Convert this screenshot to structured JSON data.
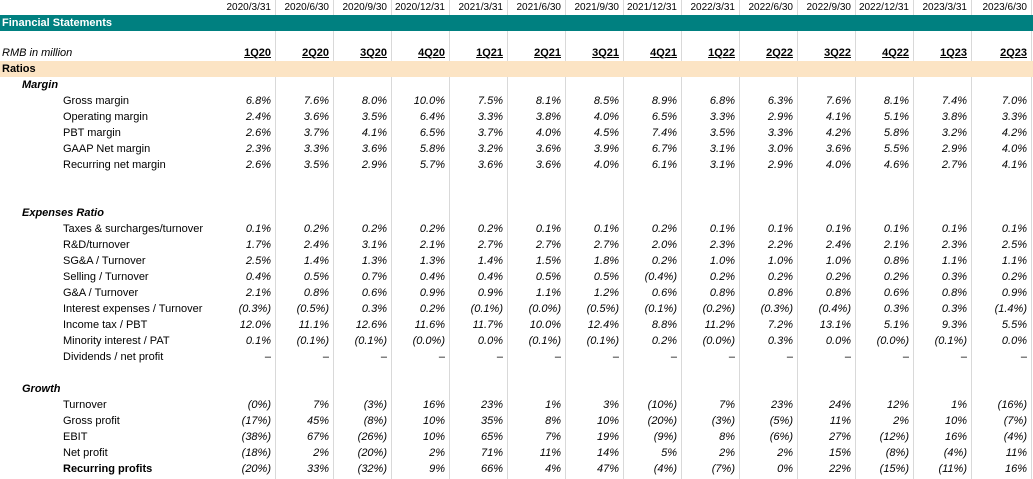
{
  "dates": [
    "2020/3/31",
    "2020/6/30",
    "2020/9/30",
    "2020/12/31",
    "2021/3/31",
    "2021/6/30",
    "2021/9/30",
    "2021/12/31",
    "2022/3/31",
    "2022/6/30",
    "2022/9/30",
    "2022/12/31",
    "2023/3/31",
    "2023/6/30"
  ],
  "quarters": [
    "1Q20",
    "2Q20",
    "3Q20",
    "4Q20",
    "1Q21",
    "2Q21",
    "3Q21",
    "4Q21",
    "1Q22",
    "2Q22",
    "3Q22",
    "4Q22",
    "1Q23",
    "2Q23"
  ],
  "title": "Financial Statements",
  "unit_label": "RMB in million",
  "ratios_label": "Ratios",
  "sections": [
    {
      "name": "Margin",
      "rows": [
        {
          "label": "Gross margin",
          "values": [
            "6.8%",
            "7.6%",
            "8.0%",
            "10.0%",
            "7.5%",
            "8.1%",
            "8.5%",
            "8.9%",
            "6.8%",
            "6.3%",
            "7.6%",
            "8.1%",
            "7.4%",
            "7.0%"
          ]
        },
        {
          "label": "Operating margin",
          "values": [
            "2.4%",
            "3.6%",
            "3.5%",
            "6.4%",
            "3.3%",
            "3.8%",
            "4.0%",
            "6.5%",
            "3.3%",
            "2.9%",
            "4.1%",
            "5.1%",
            "3.8%",
            "3.3%"
          ]
        },
        {
          "label": "PBT margin",
          "values": [
            "2.6%",
            "3.7%",
            "4.1%",
            "6.5%",
            "3.7%",
            "4.0%",
            "4.5%",
            "7.4%",
            "3.5%",
            "3.3%",
            "4.2%",
            "5.8%",
            "3.2%",
            "4.2%"
          ]
        },
        {
          "label": "GAAP Net margin",
          "values": [
            "2.3%",
            "3.3%",
            "3.6%",
            "5.8%",
            "3.2%",
            "3.6%",
            "3.9%",
            "6.7%",
            "3.1%",
            "3.0%",
            "3.6%",
            "5.5%",
            "2.9%",
            "4.0%"
          ]
        },
        {
          "label": "Recurring net margin",
          "values": [
            "2.6%",
            "3.5%",
            "2.9%",
            "5.7%",
            "3.6%",
            "3.6%",
            "4.0%",
            "6.1%",
            "3.1%",
            "2.9%",
            "4.0%",
            "4.6%",
            "2.7%",
            "4.1%"
          ]
        }
      ]
    },
    {
      "name": "Expenses Ratio",
      "rows": [
        {
          "label": "Taxes & surcharges/turnover",
          "values": [
            "0.1%",
            "0.2%",
            "0.2%",
            "0.2%",
            "0.2%",
            "0.1%",
            "0.1%",
            "0.2%",
            "0.1%",
            "0.1%",
            "0.1%",
            "0.1%",
            "0.1%",
            "0.1%"
          ]
        },
        {
          "label": "R&D/turnover",
          "values": [
            "1.7%",
            "2.4%",
            "3.1%",
            "2.1%",
            "2.7%",
            "2.7%",
            "2.7%",
            "2.0%",
            "2.3%",
            "2.2%",
            "2.4%",
            "2.1%",
            "2.3%",
            "2.5%"
          ]
        },
        {
          "label": "SG&A / Turnover",
          "values": [
            "2.5%",
            "1.4%",
            "1.3%",
            "1.3%",
            "1.4%",
            "1.5%",
            "1.8%",
            "0.2%",
            "1.0%",
            "1.0%",
            "1.0%",
            "0.8%",
            "1.1%",
            "1.1%"
          ]
        },
        {
          "label": "Selling / Turnover",
          "values": [
            "0.4%",
            "0.5%",
            "0.7%",
            "0.4%",
            "0.4%",
            "0.5%",
            "0.5%",
            "(0.4%)",
            "0.2%",
            "0.2%",
            "0.2%",
            "0.2%",
            "0.3%",
            "0.2%"
          ]
        },
        {
          "label": "G&A / Turnover",
          "values": [
            "2.1%",
            "0.8%",
            "0.6%",
            "0.9%",
            "0.9%",
            "1.1%",
            "1.2%",
            "0.6%",
            "0.8%",
            "0.8%",
            "0.8%",
            "0.6%",
            "0.8%",
            "0.9%"
          ]
        },
        {
          "label": "Interest expenses / Turnover",
          "values": [
            "(0.3%)",
            "(0.5%)",
            "0.3%",
            "0.2%",
            "(0.1%)",
            "(0.0%)",
            "(0.5%)",
            "(0.1%)",
            "(0.2%)",
            "(0.3%)",
            "(0.4%)",
            "0.3%",
            "0.3%",
            "(1.4%)"
          ]
        },
        {
          "label": "Income tax / PBT",
          "values": [
            "12.0%",
            "11.1%",
            "12.6%",
            "11.6%",
            "11.7%",
            "10.0%",
            "12.4%",
            "8.8%",
            "11.2%",
            "7.2%",
            "13.1%",
            "5.1%",
            "9.3%",
            "5.5%"
          ]
        },
        {
          "label": "Minority interest / PAT",
          "values": [
            "0.1%",
            "(0.1%)",
            "(0.1%)",
            "(0.0%)",
            "0.0%",
            "(0.1%)",
            "(0.1%)",
            "0.2%",
            "(0.0%)",
            "0.3%",
            "0.0%",
            "(0.0%)",
            "(0.1%)",
            "0.0%"
          ]
        },
        {
          "label": "Dividends / net profit",
          "values": [
            "–",
            "–",
            "–",
            "–",
            "–",
            "–",
            "–",
            "–",
            "–",
            "–",
            "–",
            "–",
            "–",
            "–"
          ]
        }
      ]
    },
    {
      "name": "Growth",
      "rows": [
        {
          "label": "Turnover",
          "values": [
            "(0%)",
            "7%",
            "(3%)",
            "16%",
            "23%",
            "1%",
            "3%",
            "(10%)",
            "7%",
            "23%",
            "24%",
            "12%",
            "1%",
            "(16%)"
          ]
        },
        {
          "label": "Gross profit",
          "values": [
            "(17%)",
            "45%",
            "(8%)",
            "10%",
            "35%",
            "8%",
            "10%",
            "(20%)",
            "(3%)",
            "(5%)",
            "11%",
            "2%",
            "10%",
            "(7%)"
          ]
        },
        {
          "label": "EBIT",
          "values": [
            "(38%)",
            "67%",
            "(26%)",
            "10%",
            "65%",
            "7%",
            "19%",
            "(9%)",
            "8%",
            "(6%)",
            "27%",
            "(12%)",
            "16%",
            "(4%)"
          ]
        },
        {
          "label": "Net profit",
          "values": [
            "(18%)",
            "2%",
            "(20%)",
            "2%",
            "71%",
            "11%",
            "14%",
            "5%",
            "2%",
            "2%",
            "15%",
            "(8%)",
            "(4%)",
            "11%"
          ]
        },
        {
          "label": "Recurring profits",
          "values": [
            "(20%)",
            "33%",
            "(32%)",
            "9%",
            "66%",
            "4%",
            "47%",
            "(4%)",
            "(7%)",
            "0%",
            "22%",
            "(15%)",
            "(11%)",
            "16%"
          ],
          "bold": true
        }
      ]
    }
  ]
}
